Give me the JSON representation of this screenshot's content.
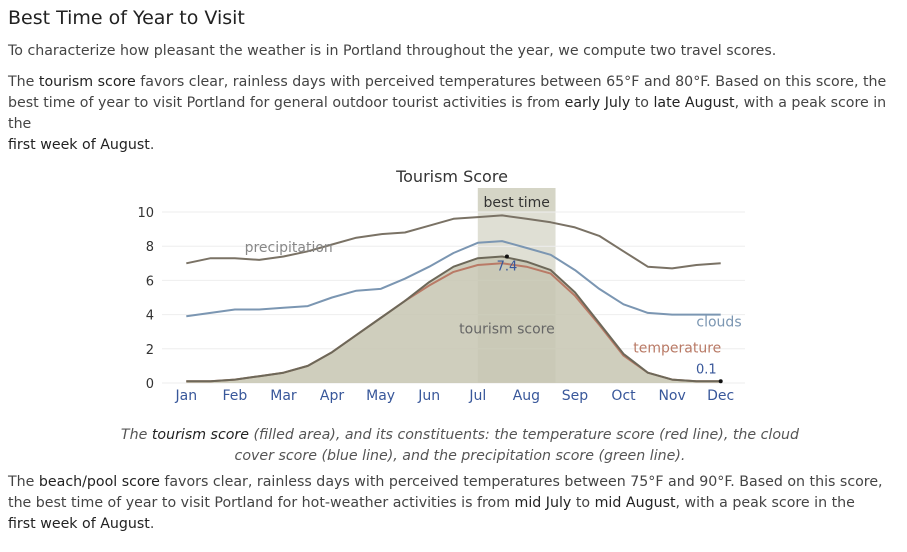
{
  "heading": "Best Time of Year to Visit",
  "intro": "To characterize how pleasant the weather is in Portland throughout the year, we compute two travel scores.",
  "tourism_paragraph": {
    "p0": "The ",
    "term": "tourism score",
    "p1": " favors clear, rainless days with perceived temperatures between 65°F and 80°F. Based on this score, the best time of year to visit Portland for general outdoor tourist activities is from ",
    "start": "early July",
    "p2": " to ",
    "end": "late August",
    "p3": ", with a peak score in the ",
    "peak": "first week of August",
    "p4": "."
  },
  "caption": {
    "p0": "The ",
    "term": "tourism score",
    "p1": " (filled area), and its constituents: the temperature score (red line), the cloud cover score (blue line), and the precipitation score (green line)."
  },
  "beach_paragraph": {
    "p0": "The ",
    "term": "beach/pool score",
    "p1": " favors clear, rainless days with perceived temperatures between 75°F and 90°F. Based on this score, the best time of year to visit Portland for hot-weather activities is from ",
    "start": "mid July",
    "p2": " to ",
    "end": "mid August",
    "p3": ", with a peak score in the ",
    "peak": "first week of August",
    "p4": "."
  },
  "colors": {
    "precipitation": "#7a7265",
    "clouds": "#7b96b2",
    "temperature": "#b97a66",
    "tourism_fill": "#c7c5b1",
    "tourism_line": "#6d6859",
    "best_band": "#dfdfd4",
    "label_blue": "#38579a"
  },
  "chart_data": {
    "type": "area",
    "title": "Tourism Score",
    "categories": [
      "Jan",
      "Feb",
      "Mar",
      "Apr",
      "May",
      "Jun",
      "Jul",
      "Aug",
      "Sep",
      "Oct",
      "Nov",
      "Dec"
    ],
    "ylim": [
      0,
      10
    ],
    "yticks": [
      "0",
      "2",
      "4",
      "6",
      "8",
      "10"
    ],
    "grid": true,
    "best_time_label": "best time",
    "best_time_range": [
      6.0,
      7.6
    ],
    "series": [
      {
        "name": "tourism score",
        "role": "fill",
        "x": [
          0,
          0.5,
          1,
          1.5,
          2,
          2.5,
          3,
          3.5,
          4,
          4.5,
          5,
          5.5,
          6,
          6.5,
          7,
          7.5,
          8,
          8.5,
          9,
          9.5,
          10,
          10.5,
          11
        ],
        "values": [
          0.1,
          0.1,
          0.2,
          0.4,
          0.6,
          1.0,
          1.8,
          2.8,
          3.8,
          4.8,
          5.9,
          6.8,
          7.3,
          7.4,
          7.1,
          6.6,
          5.3,
          3.5,
          1.7,
          0.6,
          0.2,
          0.1,
          0.1
        ]
      },
      {
        "name": "temperature",
        "x": [
          0,
          0.5,
          1,
          1.5,
          2,
          2.5,
          3,
          3.5,
          4,
          4.5,
          5,
          5.5,
          6,
          6.5,
          7,
          7.5,
          8,
          8.5,
          9,
          9.5,
          10,
          10.5,
          11
        ],
        "values": [
          0.1,
          0.1,
          0.2,
          0.4,
          0.6,
          1.0,
          1.8,
          2.8,
          3.8,
          4.8,
          5.7,
          6.5,
          6.9,
          7.0,
          6.8,
          6.4,
          5.1,
          3.4,
          1.6,
          0.6,
          0.2,
          0.1,
          0.1
        ]
      },
      {
        "name": "clouds",
        "x": [
          0,
          0.5,
          1,
          1.5,
          2,
          2.5,
          3,
          3.5,
          4,
          4.5,
          5,
          5.5,
          6,
          6.5,
          7,
          7.5,
          8,
          8.5,
          9,
          9.5,
          10,
          10.5,
          11
        ],
        "values": [
          3.9,
          4.1,
          4.3,
          4.3,
          4.4,
          4.5,
          5.0,
          5.4,
          5.5,
          6.1,
          6.8,
          7.6,
          8.2,
          8.3,
          7.9,
          7.5,
          6.6,
          5.5,
          4.6,
          4.1,
          4.0,
          4.0,
          4.0
        ]
      },
      {
        "name": "precipitation",
        "x": [
          0,
          0.5,
          1,
          1.5,
          2,
          2.5,
          3,
          3.5,
          4,
          4.5,
          5,
          5.5,
          6,
          6.5,
          7,
          7.5,
          8,
          8.5,
          9,
          9.5,
          10,
          10.5,
          11
        ],
        "values": [
          7.0,
          7.3,
          7.3,
          7.2,
          7.4,
          7.7,
          8.1,
          8.5,
          8.7,
          8.8,
          9.2,
          9.6,
          9.7,
          9.8,
          9.6,
          9.4,
          9.1,
          8.6,
          7.7,
          6.8,
          6.7,
          6.9,
          7.0
        ]
      }
    ],
    "annotations": [
      {
        "label": "7.4",
        "x": 6.6,
        "y": 7.4
      },
      {
        "label": "0.1",
        "x": 11,
        "y": 0.1
      }
    ]
  }
}
